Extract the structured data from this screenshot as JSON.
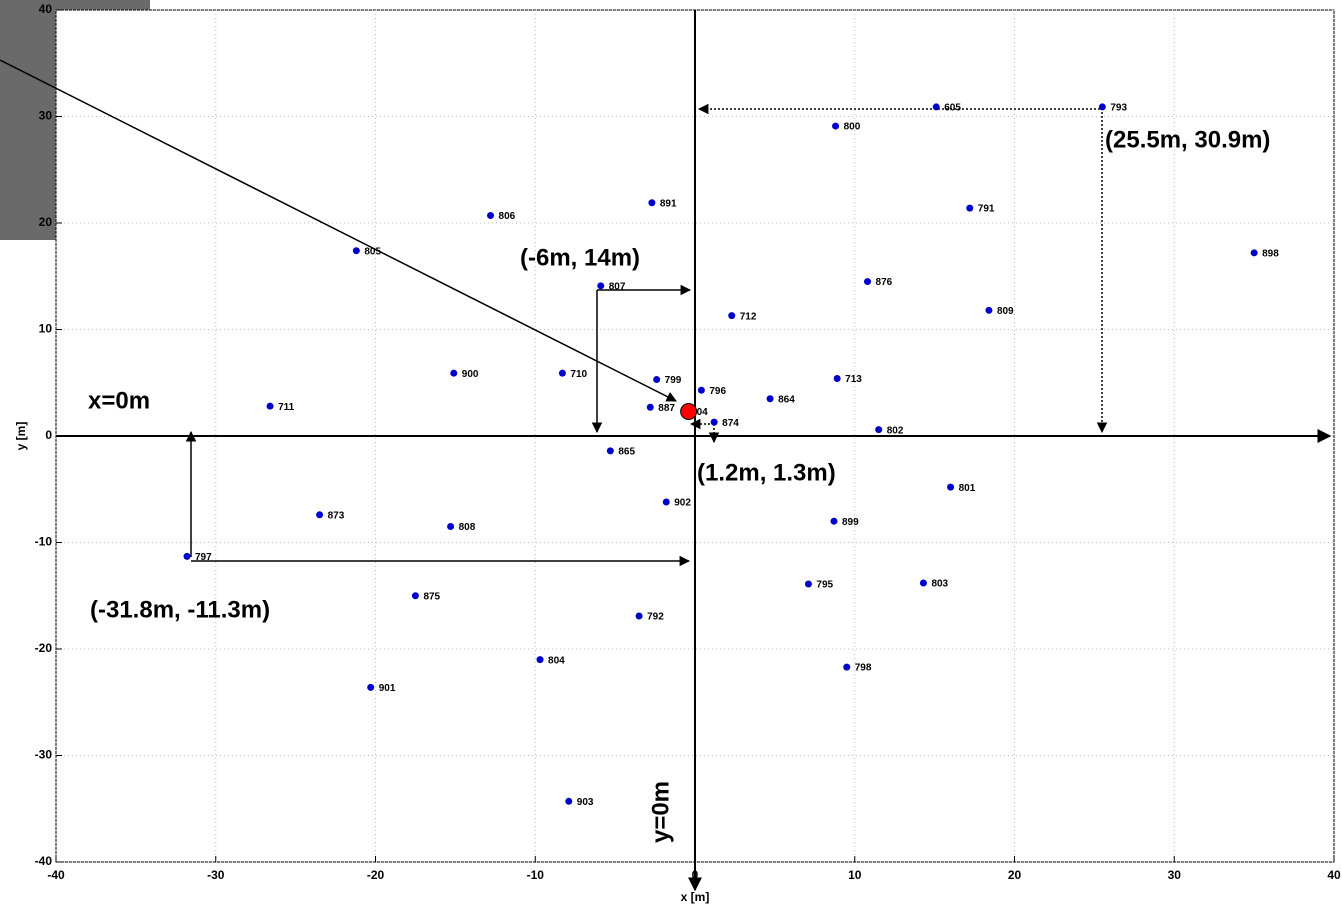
{
  "chart_data": {
    "type": "scatter",
    "xlabel": "x [m]",
    "ylabel": "y [m]",
    "xlim": [
      -40,
      40
    ],
    "ylim": [
      -40,
      40
    ],
    "xticks": [
      -40,
      -30,
      -20,
      -10,
      0,
      10,
      20,
      30,
      40
    ],
    "yticks": [
      -40,
      -30,
      -20,
      -10,
      0,
      10,
      20,
      30,
      40
    ],
    "grid": true,
    "series": [
      {
        "color": "#0000cc",
        "labels": [
          "605",
          "793",
          "800",
          "891",
          "791",
          "806",
          "805",
          "898",
          "807",
          "876",
          "809",
          "712",
          "900",
          "710",
          "799",
          "713",
          "796",
          "864",
          "711",
          "887",
          "802",
          "865",
          "801",
          "902",
          "873",
          "899",
          "808",
          "797",
          "795",
          "803",
          "875",
          "792",
          "804",
          "798",
          "901",
          "903",
          "874"
        ],
        "x": [
          15.1,
          25.5,
          8.8,
          -2.7,
          17.2,
          -12.8,
          -21.2,
          35.0,
          -5.9,
          10.8,
          18.4,
          2.3,
          -15.1,
          -8.3,
          -2.4,
          8.9,
          0.4,
          4.7,
          -26.6,
          -2.8,
          11.5,
          -5.3,
          16.0,
          -1.8,
          -23.5,
          8.7,
          -15.3,
          -31.8,
          7.1,
          14.3,
          -17.5,
          -3.5,
          -9.7,
          9.5,
          -20.3,
          -7.9,
          1.2
        ],
        "values": [
          30.9,
          30.9,
          29.1,
          21.9,
          21.4,
          20.7,
          17.4,
          17.2,
          14.1,
          14.5,
          11.8,
          11.3,
          5.9,
          5.9,
          5.3,
          5.4,
          4.3,
          3.5,
          2.8,
          2.7,
          0.6,
          -1.4,
          -4.8,
          -6.2,
          -7.4,
          -8.0,
          -8.5,
          -11.3,
          -13.9,
          -13.8,
          -15.0,
          -16.9,
          -21.0,
          -21.7,
          -23.6,
          -34.3,
          1.3
        ]
      }
    ],
    "highlight": {
      "label": "04",
      "x": -0.4,
      "y": 2.3,
      "color": "#ff0000"
    },
    "annotations": [
      "(25.5m, 30.9m)",
      "(-6m, 14m)",
      "x=0m",
      "(1.2m, 1.3m)",
      "(-31.8m, -11.3m)",
      "y=0m"
    ]
  }
}
